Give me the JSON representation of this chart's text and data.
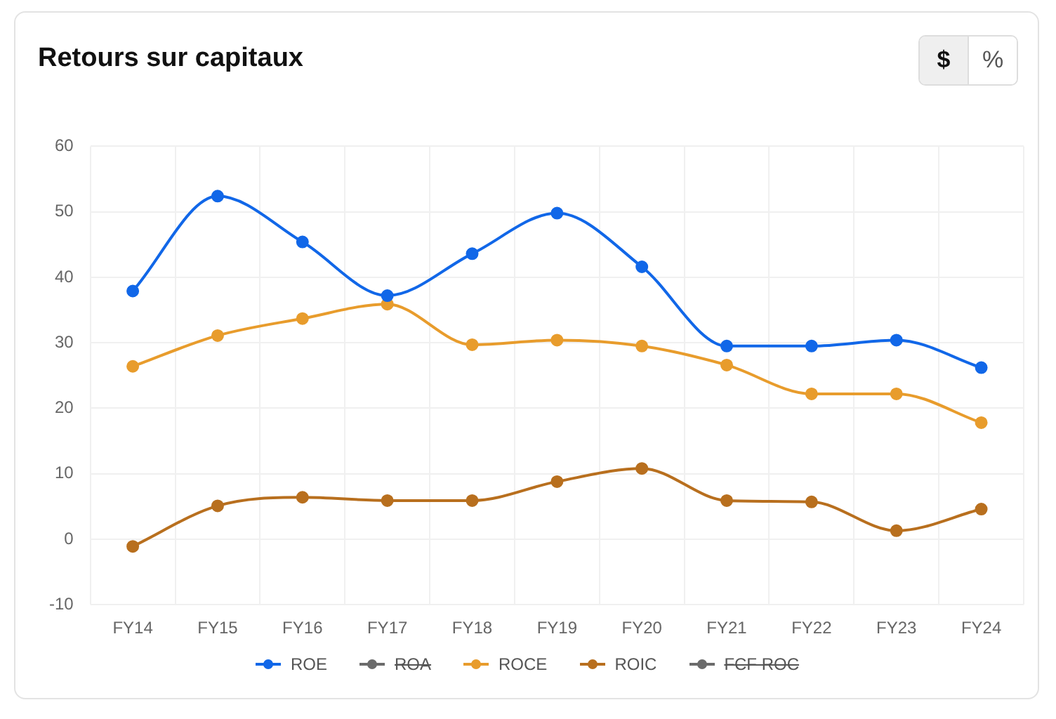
{
  "chart_data": {
    "type": "line",
    "title": "Retours sur capitaux",
    "categories": [
      "FY14",
      "FY15",
      "FY16",
      "FY17",
      "FY18",
      "FY19",
      "FY20",
      "FY21",
      "FY22",
      "FY23",
      "FY24"
    ],
    "series": [
      {
        "name": "ROE",
        "color": "#1167e8",
        "values": [
          37.9,
          52.4,
          45.4,
          37.2,
          43.6,
          49.8,
          41.6,
          29.5,
          29.5,
          30.4,
          26.2
        ]
      },
      {
        "name": "ROA",
        "color": "#6b6b6b",
        "values": [
          null,
          null,
          null,
          null,
          null,
          null,
          null,
          null,
          null,
          null,
          null
        ]
      },
      {
        "name": "ROCE",
        "color": "#e89c2c",
        "values": [
          26.4,
          31.1,
          33.7,
          35.9,
          29.7,
          30.4,
          29.5,
          26.6,
          22.2,
          22.2,
          17.8
        ]
      },
      {
        "name": "ROIC",
        "color": "#b86f1e",
        "values": [
          -1.1,
          5.1,
          6.4,
          5.9,
          5.9,
          8.8,
          10.8,
          5.9,
          5.7,
          1.3,
          4.6
        ]
      },
      {
        "name": "FCF ROC",
        "color": "#6b6b6b",
        "values": [
          null,
          null,
          null,
          null,
          null,
          null,
          null,
          null,
          null,
          null,
          null
        ]
      }
    ],
    "ylim": [
      -10,
      60
    ],
    "yticks": [
      -10,
      0,
      10,
      20,
      30,
      40,
      50,
      60
    ],
    "grid": true,
    "legend": "bottom",
    "marker": "circle",
    "line_style": "solid",
    "annotations": [
      "$",
      "%"
    ]
  }
}
